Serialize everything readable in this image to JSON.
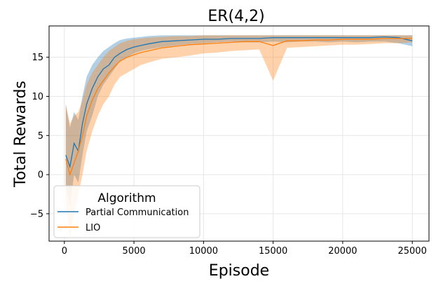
{
  "chart_data": {
    "type": "line",
    "title": "ER(4,2)",
    "xlabel": "Episode",
    "ylabel": "Total Rewards",
    "xlim": [
      -1100,
      26200
    ],
    "ylim": [
      -8.5,
      19.0
    ],
    "xticks": [
      0,
      5000,
      10000,
      15000,
      20000,
      25000
    ],
    "yticks": [
      -5,
      0,
      5,
      10,
      15
    ],
    "xtick_labels": [
      "0",
      "5000",
      "10000",
      "15000",
      "20000",
      "25000"
    ],
    "ytick_labels": [
      "−5",
      "0",
      "5",
      "10",
      "15"
    ],
    "grid": true,
    "legend": {
      "title": "Algorithm",
      "placement": "lower-left"
    },
    "series": [
      {
        "name": "Partial Communication",
        "color": "#1f77b4",
        "x": [
          100,
          400,
          700,
          1000,
          1300,
          1600,
          2000,
          2400,
          2800,
          3200,
          3600,
          4000,
          4500,
          5000,
          5500,
          6000,
          7000,
          8000,
          9000,
          10000,
          11000,
          12000,
          13000,
          14000,
          15000,
          16000,
          17000,
          18000,
          19000,
          20000,
          21000,
          22000,
          23000,
          24000,
          25000
        ],
        "values": [
          2.5,
          1.0,
          4.0,
          3.0,
          6.5,
          9.0,
          11.0,
          12.5,
          13.5,
          14.0,
          15.0,
          15.5,
          16.0,
          16.3,
          16.5,
          16.7,
          17.0,
          17.1,
          17.2,
          17.3,
          17.3,
          17.4,
          17.4,
          17.4,
          17.5,
          17.5,
          17.5,
          17.5,
          17.5,
          17.5,
          17.5,
          17.5,
          17.6,
          17.5,
          17.1
        ],
        "lower": [
          -1.5,
          -4.0,
          0.0,
          -1.0,
          2.5,
          5.5,
          7.5,
          10.0,
          11.5,
          12.5,
          13.5,
          14.5,
          15.0,
          15.5,
          15.8,
          16.0,
          16.3,
          16.5,
          16.7,
          16.8,
          16.9,
          17.0,
          16.9,
          16.9,
          17.0,
          16.9,
          17.0,
          17.0,
          16.9,
          17.0,
          16.9,
          17.0,
          17.0,
          16.8,
          16.4
        ],
        "upper": [
          9.0,
          6.0,
          8.0,
          7.0,
          10.0,
          12.5,
          14.0,
          15.0,
          15.8,
          16.3,
          16.8,
          17.2,
          17.4,
          17.5,
          17.6,
          17.7,
          17.8,
          17.8,
          17.8,
          17.8,
          17.8,
          17.8,
          17.8,
          17.8,
          17.8,
          17.8,
          17.8,
          17.8,
          17.8,
          17.8,
          17.8,
          17.8,
          17.8,
          17.8,
          17.8
        ]
      },
      {
        "name": "LIO",
        "color": "#ff7f0e",
        "x": [
          100,
          400,
          700,
          1000,
          1300,
          1600,
          2000,
          2400,
          2800,
          3200,
          3600,
          4000,
          4500,
          5000,
          5500,
          6000,
          7000,
          8000,
          9000,
          10000,
          11000,
          12000,
          13000,
          14000,
          15000,
          16000,
          17000,
          18000,
          19000,
          20000,
          21000,
          22000,
          23000,
          24000,
          25000
        ],
        "values": [
          2.0,
          0.0,
          1.5,
          3.0,
          5.0,
          7.5,
          9.5,
          11.0,
          12.0,
          13.0,
          13.8,
          14.5,
          15.0,
          15.3,
          15.6,
          15.8,
          16.2,
          16.4,
          16.6,
          16.7,
          16.8,
          16.9,
          17.0,
          17.0,
          16.5,
          17.1,
          17.1,
          17.2,
          17.2,
          17.3,
          17.3,
          17.3,
          17.4,
          17.4,
          17.4
        ],
        "lower": [
          -3.5,
          -8.0,
          -5.0,
          -2.5,
          0.0,
          3.0,
          5.5,
          7.5,
          9.0,
          10.0,
          11.5,
          12.5,
          13.0,
          13.5,
          14.0,
          14.3,
          14.8,
          15.0,
          15.2,
          15.5,
          15.6,
          15.8,
          15.9,
          16.0,
          12.0,
          16.2,
          16.3,
          16.4,
          16.5,
          16.6,
          16.6,
          16.7,
          16.8,
          16.8,
          16.9
        ],
        "upper": [
          9.0,
          6.5,
          7.5,
          8.0,
          9.5,
          11.5,
          13.0,
          14.0,
          15.0,
          15.8,
          16.3,
          16.8,
          17.1,
          17.3,
          17.4,
          17.5,
          17.6,
          17.7,
          17.7,
          17.8,
          17.8,
          17.8,
          17.8,
          17.8,
          17.8,
          17.8,
          17.8,
          17.8,
          17.8,
          17.8,
          17.8,
          17.8,
          17.8,
          17.8,
          17.8
        ]
      }
    ]
  }
}
